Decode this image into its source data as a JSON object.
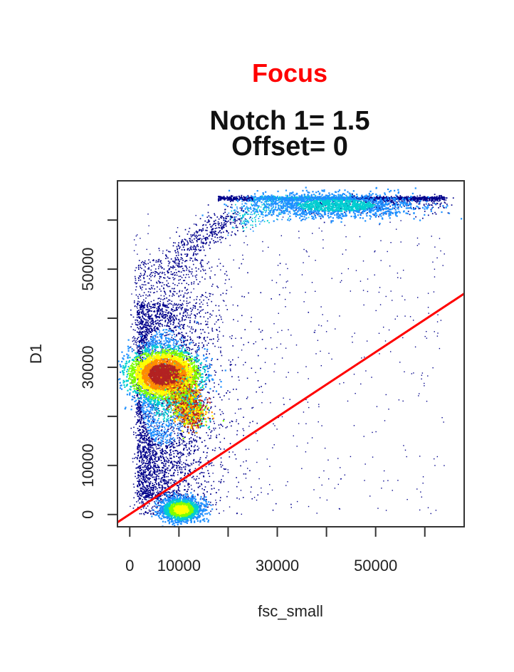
{
  "chart_data": {
    "type": "scatter",
    "title": "Focus",
    "title_color": "#ff0000",
    "subtitle_lines": [
      "Notch 1= 1.5",
      "Offset= 0"
    ],
    "xlabel": "fsc_small",
    "ylabel": "D1",
    "xlim": [
      -2500,
      68000
    ],
    "ylim": [
      -2500,
      68000
    ],
    "x_ticks": [
      0,
      10000,
      20000,
      30000,
      40000,
      50000,
      60000
    ],
    "x_tick_labels": [
      "0",
      "10000",
      "",
      "30000",
      "",
      "50000",
      ""
    ],
    "y_ticks": [
      0,
      10000,
      20000,
      30000,
      40000,
      50000,
      60000
    ],
    "y_tick_labels": [
      "0",
      "10000",
      "",
      "30000",
      "",
      "50000",
      ""
    ],
    "density_colormap": [
      "#00008b",
      "#1e90ff",
      "#00ced1",
      "#7fff00",
      "#ffff00",
      "#ff8c00",
      "#b22222"
    ],
    "clusters": [
      {
        "center": [
          7000,
          28500
        ],
        "spread": [
          3500,
          2500
        ],
        "density": "high"
      },
      {
        "center": [
          10500,
          1000
        ],
        "spread": [
          2000,
          1200
        ],
        "density": "medium"
      },
      {
        "center": [
          42000,
          63000
        ],
        "spread": [
          8000,
          1200
        ],
        "density": "medium"
      }
    ],
    "line": {
      "x": [
        -2500,
        68000
      ],
      "y": [
        -1600,
        45000
      ],
      "color": "#ff0000"
    },
    "grid": false,
    "legend": "none"
  }
}
